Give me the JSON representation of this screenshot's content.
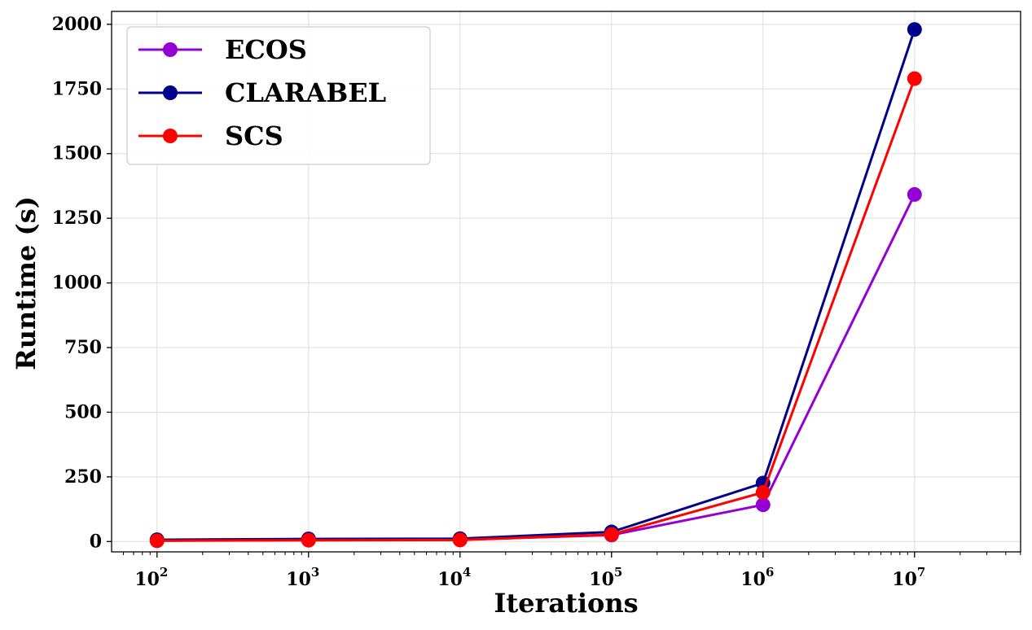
{
  "chart_data": {
    "type": "line",
    "title": "",
    "xlabel": "Iterations",
    "ylabel": "Runtime (s)",
    "x": [
      100,
      1000,
      10000,
      100000,
      1000000,
      10000000
    ],
    "xscale": "log",
    "xlim_exp": [
      1.7,
      7.7
    ],
    "ylim": [
      -40,
      2050
    ],
    "x_tick_base": "10",
    "x_tick_exponents": [
      "2",
      "3",
      "4",
      "5",
      "6",
      "7"
    ],
    "y_ticks": [
      "0",
      "250",
      "500",
      "750",
      "1000",
      "1250",
      "1500",
      "1750",
      "2000"
    ],
    "grid": true,
    "legend_position": "top-left",
    "series": [
      {
        "name": "ECOS",
        "color": "#9400d3",
        "values": [
          4,
          6,
          7,
          25,
          142,
          1342
        ]
      },
      {
        "name": "CLARABEL",
        "color": "#00008b",
        "values": [
          7,
          10,
          11,
          37,
          226,
          1980
        ]
      },
      {
        "name": "SCS",
        "color": "#ff0000",
        "values": [
          3,
          5,
          6,
          27,
          190,
          1790
        ]
      }
    ]
  }
}
